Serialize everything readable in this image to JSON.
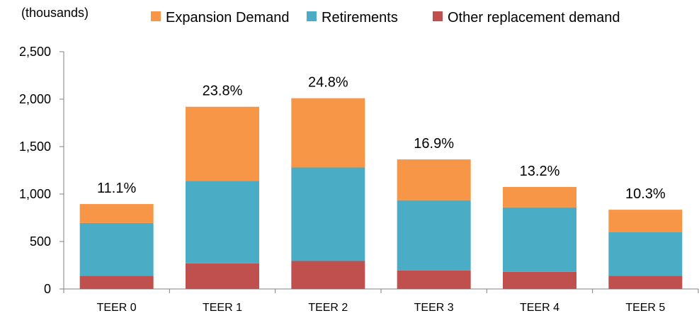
{
  "chart_data": {
    "type": "bar",
    "stacked": true,
    "unit_label": "(thousands)",
    "categories": [
      "TEER 0",
      "TEER 1",
      "TEER 2",
      "TEER 3",
      "TEER 4",
      "TEER 5"
    ],
    "series": [
      {
        "name": "Other replacement demand",
        "color": "#C0504D",
        "values": [
          140,
          270,
          295,
          195,
          180,
          140
        ]
      },
      {
        "name": "Retirements",
        "color": "#4BACC6",
        "values": [
          555,
          870,
          985,
          740,
          680,
          460
        ]
      },
      {
        "name": "Expansion Demand",
        "color": "#F79646",
        "values": [
          200,
          780,
          730,
          430,
          215,
          235
        ]
      }
    ],
    "legend_order": [
      "Expansion Demand",
      "Retirements",
      "Other replacement demand"
    ],
    "data_labels": [
      "11.1%",
      "23.8%",
      "24.8%",
      "16.9%",
      "13.2%",
      "10.3%"
    ],
    "ylim": [
      0,
      2500
    ],
    "yticks": [
      0,
      500,
      1000,
      1500,
      2000,
      2500
    ],
    "ytick_labels": [
      "0",
      "500",
      "1,000",
      "1,500",
      "2,000",
      "2,500"
    ],
    "grid": false,
    "legend_position": "top"
  }
}
